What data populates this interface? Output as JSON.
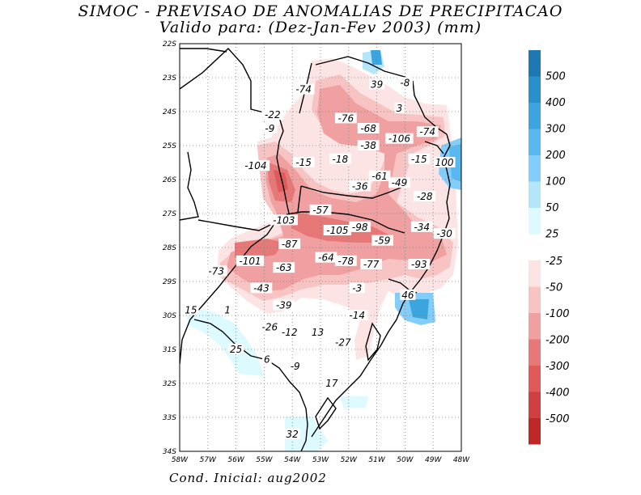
{
  "title_line1": "SIMOC - PREVISAO DE ANOMALIAS DE PRECIPITACAO",
  "title_line2": "Valido para: (Dez-Jan-Fev 2003) (mm)",
  "footer": "Cond. Inicial: aug2002",
  "map": {
    "lat_labels": [
      "22S",
      "23S",
      "24S",
      "25S",
      "26S",
      "27S",
      "28S",
      "29S",
      "30S",
      "31S",
      "32S",
      "33S",
      "34S"
    ],
    "lon_labels": [
      "58W",
      "57W",
      "56W",
      "55W",
      "54W",
      "53W",
      "52W",
      "51W",
      "50W",
      "49W",
      "48W"
    ],
    "values": [
      {
        "text": "-74",
        "lon": -53.6,
        "lat": -23.35
      },
      {
        "text": "39",
        "lon": -51.0,
        "lat": -23.2
      },
      {
        "text": "-8",
        "lon": -50.0,
        "lat": -23.15
      },
      {
        "text": "3",
        "lon": -50.2,
        "lat": -23.9
      },
      {
        "text": "-22",
        "lon": -54.7,
        "lat": -24.1
      },
      {
        "text": "-9",
        "lon": -54.8,
        "lat": -24.5
      },
      {
        "text": "-76",
        "lon": -52.1,
        "lat": -24.2
      },
      {
        "text": "-68",
        "lon": -51.3,
        "lat": -24.5
      },
      {
        "text": "-74",
        "lon": -49.2,
        "lat": -24.6
      },
      {
        "text": "-106",
        "lon": -50.2,
        "lat": -24.8
      },
      {
        "text": "-38",
        "lon": -51.3,
        "lat": -25.0
      },
      {
        "text": "-104",
        "lon": -55.3,
        "lat": -25.6
      },
      {
        "text": "-15",
        "lon": -53.6,
        "lat": -25.5
      },
      {
        "text": "-18",
        "lon": -52.3,
        "lat": -25.4
      },
      {
        "text": "-15",
        "lon": -49.5,
        "lat": -25.4
      },
      {
        "text": "100",
        "lon": -48.6,
        "lat": -25.5
      },
      {
        "text": "-61",
        "lon": -50.9,
        "lat": -25.9
      },
      {
        "text": "-36",
        "lon": -51.6,
        "lat": -26.2
      },
      {
        "text": "-49",
        "lon": -50.2,
        "lat": -26.1
      },
      {
        "text": "-28",
        "lon": -49.3,
        "lat": -26.5
      },
      {
        "text": "-57",
        "lon": -53.0,
        "lat": -26.9
      },
      {
        "text": "-103",
        "lon": -54.3,
        "lat": -27.2
      },
      {
        "text": "-98",
        "lon": -51.6,
        "lat": -27.4
      },
      {
        "text": "-105",
        "lon": -52.4,
        "lat": -27.5
      },
      {
        "text": "-34",
        "lon": -49.4,
        "lat": -27.4
      },
      {
        "text": "-30",
        "lon": -48.6,
        "lat": -27.6
      },
      {
        "text": "-87",
        "lon": -54.1,
        "lat": -27.9
      },
      {
        "text": "-59",
        "lon": -50.8,
        "lat": -27.8
      },
      {
        "text": "-101",
        "lon": -55.5,
        "lat": -28.4
      },
      {
        "text": "-64",
        "lon": -52.8,
        "lat": -28.3
      },
      {
        "text": "-78",
        "lon": -52.1,
        "lat": -28.4
      },
      {
        "text": "-77",
        "lon": -51.2,
        "lat": -28.5
      },
      {
        "text": "-93",
        "lon": -49.5,
        "lat": -28.5
      },
      {
        "text": "-73",
        "lon": -56.7,
        "lat": -28.7
      },
      {
        "text": "-63",
        "lon": -54.3,
        "lat": -28.6
      },
      {
        "text": "-43",
        "lon": -55.1,
        "lat": -29.2
      },
      {
        "text": "-3",
        "lon": -51.7,
        "lat": -29.2
      },
      {
        "text": "46",
        "lon": -49.9,
        "lat": -29.4
      },
      {
        "text": "-39",
        "lon": -54.3,
        "lat": -29.7
      },
      {
        "text": "15",
        "lon": -57.6,
        "lat": -29.85
      },
      {
        "text": "1",
        "lon": -56.3,
        "lat": -29.85
      },
      {
        "text": "-14",
        "lon": -51.7,
        "lat": -30.0
      },
      {
        "text": "-26",
        "lon": -54.8,
        "lat": -30.35
      },
      {
        "text": "-12",
        "lon": -54.1,
        "lat": -30.5
      },
      {
        "text": "13",
        "lon": -53.1,
        "lat": -30.5
      },
      {
        "text": "-27",
        "lon": -52.2,
        "lat": -30.8
      },
      {
        "text": "25",
        "lon": -56.0,
        "lat": -31.0
      },
      {
        "text": "6",
        "lon": -54.9,
        "lat": -31.3
      },
      {
        "text": "-9",
        "lon": -53.9,
        "lat": -31.5
      },
      {
        "text": "17",
        "lon": -52.6,
        "lat": -32.0
      },
      {
        "text": "32",
        "lon": -54.0,
        "lat": -33.5
      }
    ]
  },
  "legend": {
    "positive": [
      {
        "label": "500",
        "color": "#1e78b4"
      },
      {
        "label": "400",
        "color": "#2891cc"
      },
      {
        "label": "300",
        "color": "#3ca5e0"
      },
      {
        "label": "200",
        "color": "#5ab8f0"
      },
      {
        "label": "100",
        "color": "#82cdfa"
      },
      {
        "label": "50",
        "color": "#b4e6fa"
      },
      {
        "label": "25",
        "color": "#dcfaff"
      }
    ],
    "negative": [
      {
        "label": "-25",
        "color": "#fde4e4"
      },
      {
        "label": "-50",
        "color": "#f8c3c3"
      },
      {
        "label": "-100",
        "color": "#f0a0a0"
      },
      {
        "label": "-200",
        "color": "#e67878"
      },
      {
        "label": "-300",
        "color": "#e05a5a"
      },
      {
        "label": "-400",
        "color": "#d04040"
      },
      {
        "label": "-500",
        "color": "#c02828"
      }
    ]
  }
}
